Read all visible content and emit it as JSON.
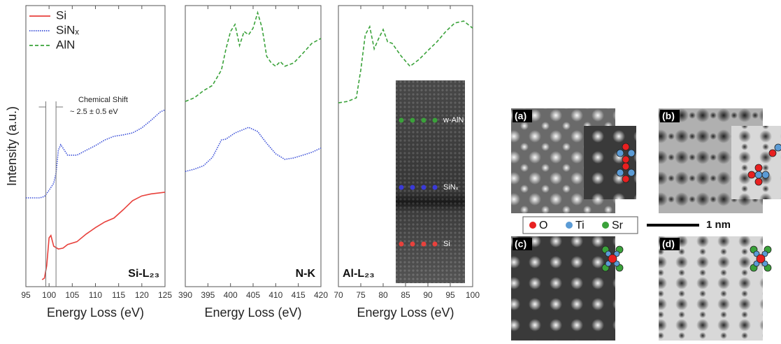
{
  "chart_data": [
    {
      "type": "line",
      "xlabel": "Energy Loss (eV)",
      "ylabel": "Intensity (a.u.)",
      "panel_label": "Si-L₂₃",
      "xlim": [
        95,
        125
      ],
      "ylim": [
        0,
        100
      ],
      "xticks": [
        95,
        100,
        105,
        110,
        115,
        120,
        125
      ],
      "legend": [
        {
          "name": "Si",
          "color": "#e8413c",
          "style": "solid"
        },
        {
          "name": "SiNₓ",
          "color": "#3a4fd8",
          "style": "dotted"
        },
        {
          "name": "AlN",
          "color": "#3aa23a",
          "style": "dashed"
        }
      ],
      "annotation": {
        "title": "Chemical Shift",
        "text": "~ 2.5 ± 0.5 eV",
        "x": [
          99.3,
          101.5
        ]
      },
      "series": [
        {
          "color": "#e8413c",
          "style": "solid",
          "x": [
            98.5,
            99,
            99.5,
            100,
            100.4,
            101,
            102,
            103,
            104,
            106,
            108,
            110,
            112,
            114,
            116,
            118,
            120,
            122,
            125
          ],
          "values": [
            2.5,
            3,
            7.5,
            17.4,
            18.2,
            14.4,
            13.4,
            13.7,
            15,
            16,
            18.7,
            21,
            23,
            24.4,
            27.4,
            30.6,
            32.3,
            33,
            33.6
          ]
        },
        {
          "color": "#3a4fd8",
          "style": "dotted",
          "x": [
            95,
            98,
            99,
            100,
            101,
            101.5,
            102,
            102.5,
            103,
            104,
            106,
            108,
            110,
            112,
            114,
            116,
            118,
            120,
            122,
            124,
            125
          ],
          "values": [
            31.6,
            31.6,
            32.1,
            34.3,
            36.8,
            40.3,
            48.5,
            50.5,
            49.3,
            46.8,
            46.8,
            48.5,
            50.2,
            52.2,
            53.5,
            54,
            54.7,
            56.5,
            59.2,
            62.2,
            62.9
          ]
        }
      ]
    },
    {
      "type": "line",
      "xlabel": "Energy Loss (eV)",
      "panel_label": "N-K",
      "xlim": [
        390,
        420
      ],
      "ylim": [
        0,
        100
      ],
      "xticks": [
        390,
        395,
        400,
        405,
        410,
        415,
        420
      ],
      "series": [
        {
          "color": "#3aa23a",
          "style": "dashed",
          "x": [
            390,
            392,
            394,
            396,
            398,
            399,
            400,
            401,
            402,
            403,
            404,
            405,
            406,
            407,
            408,
            409,
            410,
            411,
            412,
            414,
            416,
            418,
            420
          ],
          "values": [
            65.9,
            67.2,
            69.7,
            71.6,
            77.1,
            84.6,
            90.8,
            93.3,
            85.8,
            90.8,
            89.6,
            92,
            97.5,
            92,
            82,
            79.6,
            78.4,
            80.1,
            78.4,
            79.6,
            83,
            86.6,
            88.3
          ]
        },
        {
          "color": "#3a4fd8",
          "style": "dotted",
          "x": [
            390,
            392,
            394,
            396,
            398,
            399,
            401,
            403,
            404,
            406,
            408,
            410,
            412,
            414,
            416,
            418,
            420
          ],
          "values": [
            41,
            41.8,
            43,
            46,
            52.2,
            52.5,
            54.7,
            56,
            56.7,
            55.2,
            51,
            47.3,
            45.3,
            45.8,
            46.8,
            47.8,
            49.3
          ]
        }
      ]
    },
    {
      "type": "line",
      "xlabel": "Energy Loss (eV)",
      "panel_label": "Al-L₂₃",
      "xlim": [
        70,
        100
      ],
      "ylim": [
        0,
        100
      ],
      "xticks": [
        70,
        75,
        80,
        85,
        90,
        95,
        100
      ],
      "inset": {
        "labels": [
          {
            "text": "w-AlN",
            "color": "#3aa23a"
          },
          {
            "text": "SiNₓ",
            "color": "#3a3ad8"
          },
          {
            "text": "Si",
            "color": "#e8413c"
          }
        ]
      },
      "series": [
        {
          "color": "#3aa23a",
          "style": "dashed",
          "x": [
            70,
            72,
            74,
            75,
            76,
            77,
            78,
            79,
            80,
            81,
            82,
            84,
            86,
            88,
            90,
            92,
            94,
            96,
            98,
            100
          ],
          "values": [
            65.4,
            65.9,
            67.2,
            77.1,
            89.6,
            92.5,
            84.6,
            88.3,
            91.5,
            87.1,
            86.6,
            82.1,
            78.4,
            80.8,
            84,
            87.1,
            90.8,
            93.8,
            94.5,
            92
          ]
        }
      ]
    }
  ],
  "micrographs": {
    "panels": [
      "(a)",
      "(b)",
      "(c)",
      "(d)"
    ],
    "legend": [
      {
        "name": "O",
        "color": "#e82020"
      },
      {
        "name": "Ti",
        "color": "#5b9bd5"
      },
      {
        "name": "Sr",
        "color": "#3aa23a"
      }
    ],
    "scale_bar": "1 nm"
  }
}
